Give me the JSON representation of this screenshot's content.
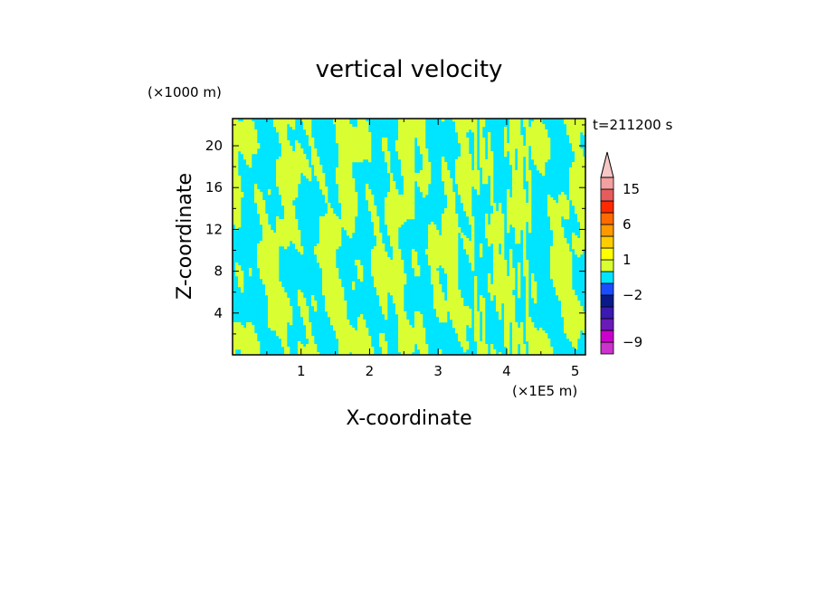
{
  "chart_data": {
    "type": "heatmap",
    "title": "vertical velocity",
    "xlabel": "X-coordinate",
    "ylabel": "Z-coordinate",
    "x_scale_label": "(×1E5 m)",
    "y_scale_label": "(×1000 m)",
    "time_label": "t=211200 s",
    "xlim": [
      0,
      5.15
    ],
    "ylim": [
      0,
      22.6
    ],
    "xticks": [
      1,
      2,
      3,
      4,
      5
    ],
    "yticks": [
      4,
      8,
      12,
      16,
      20
    ],
    "field_colors": {
      "negative": "#00e5ff",
      "positive": "#d9ff33"
    },
    "colorbar": {
      "labels": [
        {
          "value": "15",
          "level": 15
        },
        {
          "value": "6",
          "level": 6
        },
        {
          "value": "1",
          "level": 1
        },
        {
          "value": "−2",
          "level": -2
        },
        {
          "value": "−9",
          "level": -9
        }
      ],
      "bands": [
        {
          "color": "#cc33cc",
          "from": -12,
          "to": -9
        },
        {
          "color": "#cc00cc",
          "from": -9,
          "to": -6
        },
        {
          "color": "#6a1ab8",
          "from": -6,
          "to": -4
        },
        {
          "color": "#3a1ab0",
          "from": -4,
          "to": -3
        },
        {
          "color": "#0a1a8a",
          "from": -3,
          "to": -2
        },
        {
          "color": "#1a4dff",
          "from": -2,
          "to": -1
        },
        {
          "color": "#00e5ff",
          "from": -1,
          "to": 0
        },
        {
          "color": "#d9ff33",
          "from": 0,
          "to": 1
        },
        {
          "color": "#ffff00",
          "from": 1,
          "to": 2
        },
        {
          "color": "#ffcc00",
          "from": 2,
          "to": 3
        },
        {
          "color": "#ff9900",
          "from": 3,
          "to": 6
        },
        {
          "color": "#ff6a00",
          "from": 6,
          "to": 9
        },
        {
          "color": "#ff2a00",
          "from": 9,
          "to": 12
        },
        {
          "color": "#e65c5c",
          "from": 12,
          "to": 15
        },
        {
          "color": "#f2a0a0",
          "from": 15,
          "to": 20
        }
      ],
      "extend_top_color": "#f7c6c6"
    }
  }
}
